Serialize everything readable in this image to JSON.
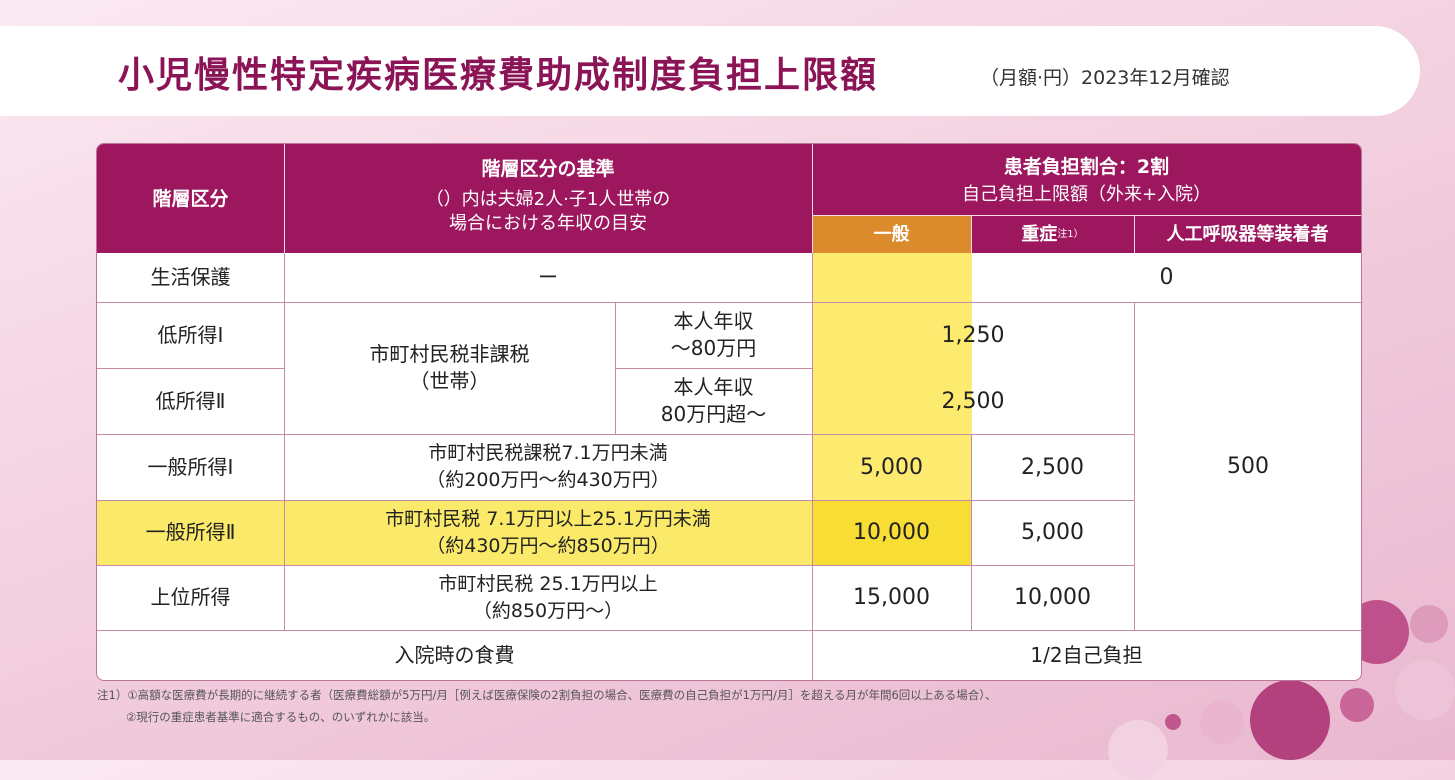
{
  "title": {
    "main": "小児慢性特定疾病医療費助成制度負担上限額",
    "sub": "（月額·円）2023年12月確認"
  },
  "header": {
    "category": "階層区分",
    "criteria_title": "階層区分の基準",
    "criteria_note": "（）内は夫婦2人·子1人世帯の\n場合における年収の目安",
    "ratio": "患者負担割合：2割",
    "limit": "自己負担上限額（外来+入院）",
    "general": "一般",
    "severe": "重症",
    "severe_note": "注1）",
    "ventilator": "人工呼吸器等装着者"
  },
  "rows": {
    "welfare": {
      "label": "生活保護",
      "criteria": "ー",
      "value": "0"
    },
    "low1": {
      "label": "低所得Ⅰ",
      "income": "本人年収\n～80万円",
      "value": "1,250"
    },
    "low2": {
      "label": "低所得Ⅱ",
      "income": "本人年収\n80万円超～",
      "value": "2,500"
    },
    "low_criteria": "市町村民税非課税\n（世帯）",
    "gen1": {
      "label": "一般所得Ⅰ",
      "criteria": "市町村民税課税7.1万円未満\n（約200万円～約430万円）",
      "general": "5,000",
      "severe": "2,500"
    },
    "gen2": {
      "label": "一般所得Ⅱ",
      "criteria": "市町村民税 7.1万円以上25.1万円未満\n（約430万円～約850万円）",
      "general": "10,000",
      "severe": "5,000"
    },
    "upper": {
      "label": "上位所得",
      "criteria": "市町村民税 25.1万円以上\n（約850万円～）",
      "general": "15,000",
      "severe": "10,000"
    },
    "ventilator_value": "500",
    "meal": {
      "label": "入院時の食費",
      "value": "1/2自己負担"
    }
  },
  "footnote": {
    "line1": "注1）①高額な医療費が長期的に継続する者（医療費総額が5万円/月［例えば医療保険の2割負担の場合、医療費の自己負担が1万円/月］を超える月が年間6回以上ある場合）、",
    "line2": "②現行の重症患者基準に適合するもの、のいずれかに該当。"
  },
  "colors": {
    "header_bg": "#9c175e",
    "general_header_bg": "#db8a2c",
    "highlight_yellow": "#fbe96a",
    "highlight_strong": "#f8dd35",
    "title_color": "#8b1456"
  }
}
